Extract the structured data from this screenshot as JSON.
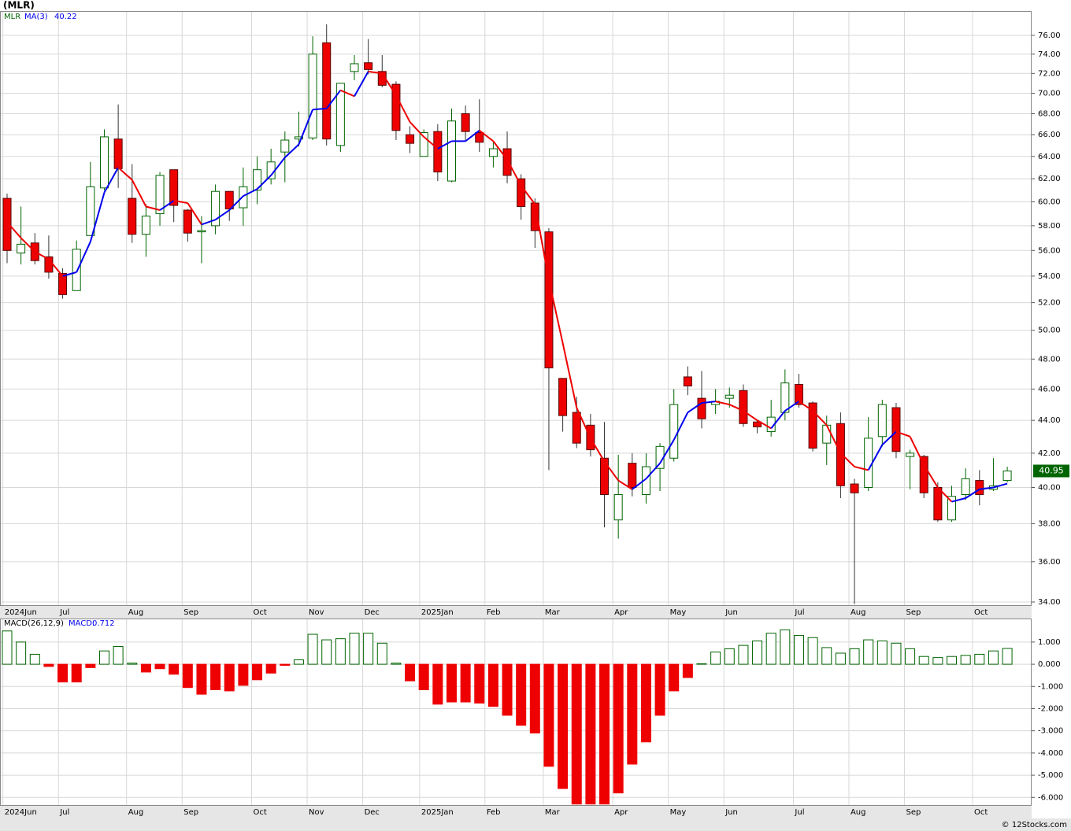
{
  "footer": "© 12Stocks.com",
  "chart_data": [
    {
      "type": "candlestick",
      "title": "(MLR)",
      "symbol": "MLR",
      "log_scale": true,
      "grid": true,
      "ylim": [
        33.81,
        78.67
      ],
      "yticks": [
        {
          "value": 34,
          "label": "34.00"
        },
        {
          "value": 36,
          "label": "36.00"
        },
        {
          "value": 38,
          "label": "38.00"
        },
        {
          "value": 40,
          "label": "40.00"
        },
        {
          "value": 42,
          "label": "42.00"
        },
        {
          "value": 44,
          "label": "44.00"
        },
        {
          "value": 46,
          "label": "46.00"
        },
        {
          "value": 48,
          "label": "48.00"
        },
        {
          "value": 50,
          "label": "50.00"
        },
        {
          "value": 52,
          "label": "52.00"
        },
        {
          "value": 54,
          "label": "54.00"
        },
        {
          "value": 56,
          "label": "56.00"
        },
        {
          "value": 58,
          "label": "58.00"
        },
        {
          "value": 60,
          "label": "60.00"
        },
        {
          "value": 62,
          "label": "62.00"
        },
        {
          "value": 64,
          "label": "64.00"
        },
        {
          "value": 66,
          "label": "66.00"
        },
        {
          "value": 68,
          "label": "68.00"
        },
        {
          "value": 70,
          "label": "70.00"
        },
        {
          "value": 72,
          "label": "72.00"
        },
        {
          "value": 74,
          "label": "74.00"
        },
        {
          "value": 76,
          "label": "76.00"
        }
      ],
      "xticks": [
        {
          "value": -0.3,
          "label": "2024Jun"
        },
        {
          "value": 3.7,
          "label": "Jul"
        },
        {
          "value": 8.6,
          "label": "Aug"
        },
        {
          "value": 12.6,
          "label": "Sep"
        },
        {
          "value": 17.6,
          "label": "Oct"
        },
        {
          "value": 21.6,
          "label": "Nov"
        },
        {
          "value": 25.6,
          "label": "Dec"
        },
        {
          "value": 29.7,
          "label": "2025Jan"
        },
        {
          "value": 34.4,
          "label": "Feb"
        },
        {
          "value": 38.6,
          "label": "Mar"
        },
        {
          "value": 43.6,
          "label": "Apr"
        },
        {
          "value": 47.6,
          "label": "May"
        },
        {
          "value": 51.6,
          "label": "Jun"
        },
        {
          "value": 56.6,
          "label": "Jul"
        },
        {
          "value": 60.6,
          "label": "Aug"
        },
        {
          "value": 64.6,
          "label": "Sep"
        },
        {
          "value": 69.5,
          "label": "Oct"
        }
      ],
      "up_color": "#006400",
      "down_color": "#ee0000",
      "open": [
        60.3,
        55.8,
        56.6,
        55.5,
        54.2,
        52.9,
        57.2,
        61.2,
        65.6,
        60.3,
        57.3,
        59.0,
        62.8,
        59.3,
        57.5,
        58.0,
        60.9,
        59.5,
        61.0,
        62.0,
        64.4,
        65.6,
        65.7,
        75.2,
        65.0,
        72.2,
        73.1,
        72.2,
        70.9,
        66.0,
        64.0,
        66.3,
        61.8,
        68.0,
        66.2,
        64.0,
        64.7,
        62.0,
        59.9,
        57.5,
        46.7,
        44.5,
        43.7,
        41.7,
        38.2,
        41.4,
        39.6,
        41.1,
        41.7,
        46.8,
        45.4,
        45.0,
        45.4,
        45.9,
        43.9,
        43.3,
        44.5,
        46.3,
        45.1,
        42.6,
        43.8,
        40.2,
        40.0,
        43.0,
        44.8,
        41.8,
        41.8,
        40.0,
        38.2,
        39.6,
        40.4,
        39.9,
        40.4
      ],
      "high": [
        60.7,
        59.6,
        57.4,
        57.2,
        54.6,
        56.8,
        63.5,
        66.5,
        68.9,
        63.3,
        59.8,
        62.6,
        62.8,
        59.4,
        58.8,
        61.5,
        60.9,
        63.0,
        64.0,
        64.7,
        66.3,
        68.2,
        75.9,
        77.2,
        71.0,
        73.9,
        75.6,
        73.9,
        71.2,
        66.8,
        66.5,
        67.0,
        68.5,
        68.8,
        69.4,
        65.3,
        66.3,
        62.4,
        60.3,
        57.8,
        46.7,
        45.5,
        44.4,
        43.9,
        41.9,
        42.0,
        42.0,
        42.6,
        46.0,
        47.5,
        47.2,
        46.0,
        46.1,
        46.3,
        44.0,
        45.3,
        47.3,
        47.0,
        45.2,
        44.3,
        44.5,
        40.5,
        44.2,
        45.3,
        45.1,
        42.2,
        41.9,
        40.3,
        40.1,
        41.1,
        41.0,
        41.7,
        41.2
      ],
      "low": [
        55.0,
        54.9,
        54.9,
        53.8,
        52.3,
        52.9,
        57.2,
        61.0,
        61.2,
        56.6,
        55.5,
        58.0,
        58.3,
        56.7,
        55.0,
        57.3,
        58.4,
        58.0,
        59.8,
        61.5,
        61.7,
        64.9,
        65.5,
        65.0,
        64.4,
        71.3,
        71.9,
        70.6,
        65.5,
        64.3,
        64.0,
        61.8,
        61.7,
        65.4,
        64.4,
        63.0,
        61.6,
        58.5,
        56.2,
        41.0,
        43.3,
        42.3,
        41.8,
        37.8,
        37.2,
        39.5,
        39.1,
        39.8,
        41.5,
        45.6,
        43.5,
        44.4,
        44.8,
        43.6,
        43.2,
        43.0,
        44.0,
        44.8,
        42.1,
        41.3,
        39.4,
        33.9,
        39.8,
        42.4,
        41.7,
        39.9,
        39.4,
        38.1,
        38.1,
        39.3,
        39.0,
        39.8,
        40.3
      ],
      "close": [
        56.0,
        56.5,
        55.2,
        54.3,
        52.6,
        56.1,
        61.3,
        65.8,
        62.9,
        57.3,
        58.8,
        62.3,
        59.7,
        57.4,
        57.6,
        60.9,
        59.4,
        61.3,
        62.8,
        63.5,
        65.5,
        65.8,
        74.0,
        65.6,
        71.0,
        73.0,
        72.4,
        70.8,
        66.4,
        65.2,
        66.2,
        62.6,
        67.3,
        66.3,
        65.3,
        64.7,
        62.3,
        59.6,
        57.6,
        47.4,
        44.3,
        42.6,
        42.2,
        39.6,
        39.6,
        40.0,
        41.2,
        42.4,
        45.0,
        46.2,
        44.1,
        45.2,
        45.6,
        43.8,
        43.6,
        44.2,
        46.4,
        45.0,
        42.3,
        43.7,
        40.1,
        39.7,
        42.9,
        45.0,
        42.1,
        42.0,
        39.7,
        38.2,
        39.5,
        40.5,
        39.6,
        40.1,
        40.95
      ],
      "ma": {
        "name": "MA(3)",
        "rising_color": "#0000ee",
        "falling_color": "#ee0000",
        "values": [
          58.3,
          57.0,
          55.9,
          55.3,
          54.0,
          54.3,
          56.7,
          60.8,
          63.0,
          61.9,
          59.6,
          59.3,
          60.1,
          59.9,
          58.1,
          58.5,
          59.3,
          60.5,
          61.1,
          62.3,
          63.9,
          65.1,
          68.4,
          68.5,
          70.3,
          69.7,
          72.2,
          72.0,
          69.8,
          67.2,
          65.8,
          64.7,
          65.4,
          65.4,
          66.4,
          65.4,
          63.7,
          61.4,
          59.8,
          53.7,
          49.1,
          44.8,
          42.9,
          41.5,
          40.4,
          39.9,
          40.5,
          41.4,
          42.8,
          44.5,
          45.1,
          45.2,
          45.0,
          44.6,
          44.0,
          43.5,
          44.6,
          45.2,
          44.6,
          43.7,
          42.0,
          41.2,
          41.0,
          42.5,
          43.3,
          43.0,
          41.3,
          40.0,
          39.2,
          39.4,
          39.9,
          40.0,
          40.22
        ]
      }
    },
    {
      "type": "bar",
      "title": "MACD(26,12,9)",
      "value_label": "MACD:",
      "grid": true,
      "ylim": [
        -6.38,
        2.06
      ],
      "yticks": [
        {
          "value": 1,
          "label": "1.000"
        },
        {
          "value": 0,
          "label": "0.000"
        },
        {
          "value": -1,
          "label": "-1.000"
        },
        {
          "value": -2,
          "label": "-2.000"
        },
        {
          "value": -3,
          "label": "-3.000"
        },
        {
          "value": -4,
          "label": "-4.000"
        },
        {
          "value": -5,
          "label": "-5.000"
        },
        {
          "value": -6,
          "label": "-6.000"
        }
      ],
      "xticks": [
        {
          "value": -0.3,
          "label": "2024Jun"
        },
        {
          "value": 3.7,
          "label": "Jul"
        },
        {
          "value": 8.6,
          "label": "Aug"
        },
        {
          "value": 12.6,
          "label": "Sep"
        },
        {
          "value": 17.6,
          "label": "Oct"
        },
        {
          "value": 21.6,
          "label": "Nov"
        },
        {
          "value": 25.6,
          "label": "Dec"
        },
        {
          "value": 29.7,
          "label": "2025Jan"
        },
        {
          "value": 34.4,
          "label": "Feb"
        },
        {
          "value": 38.6,
          "label": "Mar"
        },
        {
          "value": 43.6,
          "label": "Apr"
        },
        {
          "value": 47.6,
          "label": "May"
        },
        {
          "value": 51.6,
          "label": "Jun"
        },
        {
          "value": 56.6,
          "label": "Jul"
        },
        {
          "value": 60.6,
          "label": "Aug"
        },
        {
          "value": 64.6,
          "label": "Sep"
        },
        {
          "value": 69.5,
          "label": "Oct"
        }
      ],
      "positive_color": "#006400",
      "negative_color": "#ee0000",
      "values": [
        1.5,
        1.0,
        0.45,
        -0.1,
        -0.8,
        -0.8,
        -0.15,
        0.6,
        0.8,
        0.05,
        -0.35,
        -0.2,
        -0.45,
        -1.05,
        -1.35,
        -1.15,
        -1.2,
        -0.95,
        -0.7,
        -0.4,
        -0.05,
        0.2,
        1.35,
        1.1,
        1.15,
        1.4,
        1.4,
        0.95,
        0.05,
        -0.75,
        -1.15,
        -1.8,
        -1.7,
        -1.7,
        -1.75,
        -1.9,
        -2.3,
        -2.75,
        -3.1,
        -4.6,
        -5.6,
        -6.3,
        -6.3,
        -6.3,
        -5.8,
        -4.5,
        -3.5,
        -2.3,
        -1.2,
        -0.6,
        0.02,
        0.55,
        0.7,
        0.85,
        1.05,
        1.4,
        1.55,
        1.3,
        1.2,
        0.75,
        0.5,
        0.7,
        1.1,
        1.05,
        0.95,
        0.7,
        0.35,
        0.3,
        0.35,
        0.4,
        0.45,
        0.6,
        0.712
      ]
    }
  ]
}
